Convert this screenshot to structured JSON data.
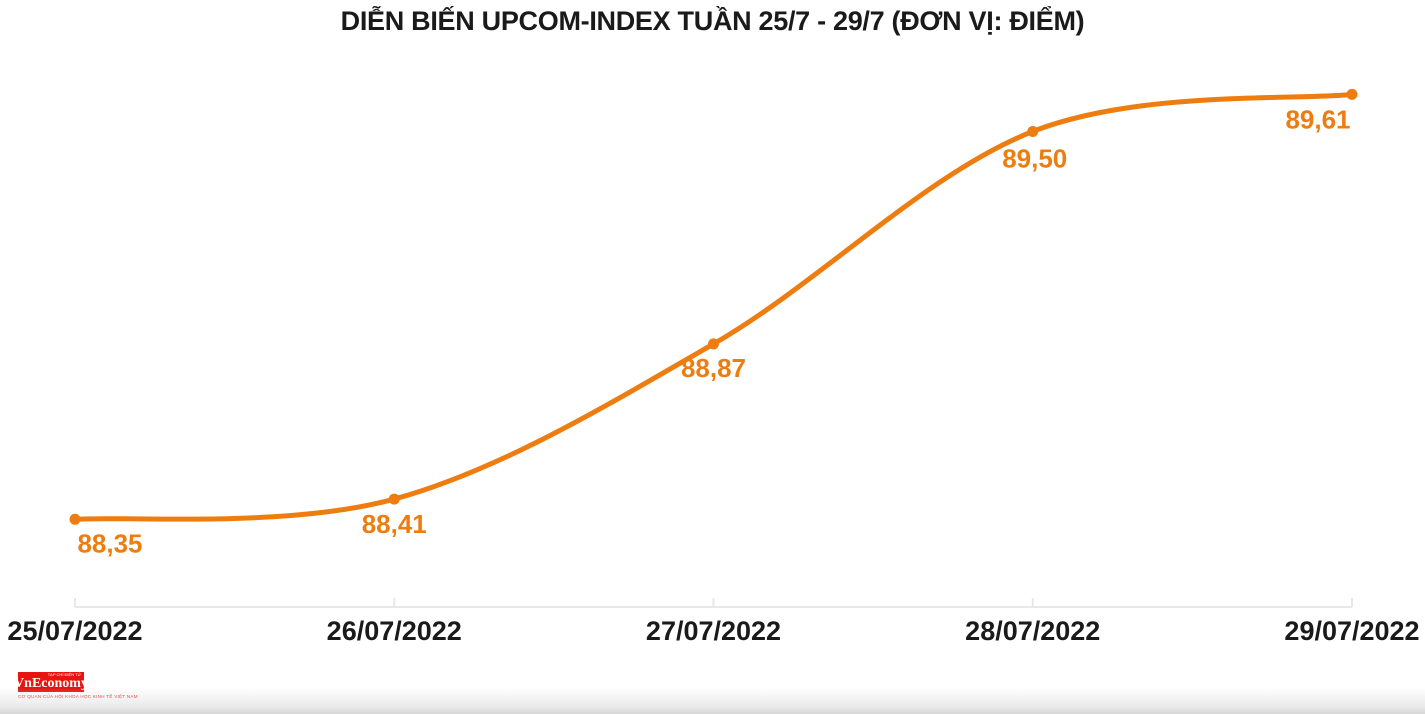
{
  "title": "DIỄN BIẾN UPCOM-INDEX TUẦN 25/7 - 29/7 (ĐƠN VỊ: ĐIỂM)",
  "colors": {
    "line": "#ee7d11",
    "point": "#ee7d11",
    "value_label": "#ee7d11",
    "title_text": "#1a1a1a",
    "axis_text": "#1a1a1a",
    "axis_line": "#e8e8e8",
    "logo_red": "#e61510",
    "background": "#ffffff"
  },
  "chart_data": {
    "type": "line",
    "title": "DIỄN BIẾN UPCOM-INDEX TUẦN 25/7 - 29/7 (ĐƠN VỊ: ĐIỂM)",
    "series_name": "UPCOM-INDEX",
    "unit": "ĐIỂM",
    "categories": [
      "25/07/2022",
      "26/07/2022",
      "27/07/2022",
      "28/07/2022",
      "29/07/2022"
    ],
    "values": [
      88.35,
      88.41,
      88.87,
      89.5,
      89.61
    ],
    "value_labels": [
      "88,35",
      "88,41",
      "88,87",
      "89,50",
      "89,61"
    ],
    "xlabel": "",
    "ylabel": "",
    "ylim": [
      88.09,
      89.7
    ],
    "grid": false,
    "legend": "none",
    "marker": "circle",
    "smooth": true
  },
  "logo": {
    "name": "VnEconomy",
    "tagline_top": "TẠP CHÍ ĐIỆN TỬ",
    "tagline_bottom": "CƠ QUAN CỦA HỘI KHOA HỌC KINH TẾ VIỆT NAM"
  }
}
